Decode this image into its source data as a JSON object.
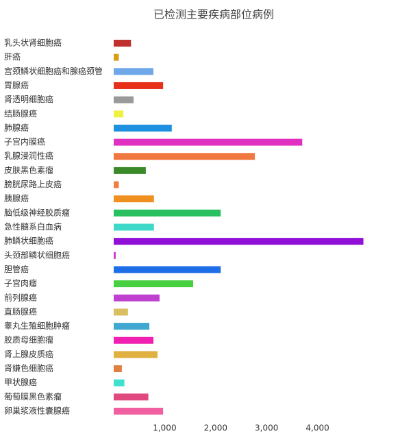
{
  "chart_data": {
    "type": "barh",
    "title": "已检测主要疾病部位病例",
    "categories": [
      "乳头状肾细胞癌",
      "肝癌",
      "宫颈鳞状细胞癌和腺癌颈管",
      "胃腺癌",
      "肾透明细胞癌",
      "结肠腺癌",
      "肺腺癌",
      "子宫内膜癌",
      "乳腺浸润性癌",
      "皮肤黑色素瘤",
      "膀胱尿路上皮癌",
      "胰腺癌",
      "脑低级神经胶质瘤",
      "急性髓系白血病",
      "肺鳞状细胞癌",
      "头颈部鳞状细胞癌",
      "胆管癌",
      "子宫肉瘤",
      "前列腺癌",
      "直肠腺癌",
      "睾丸生殖细胞肿瘤",
      "胶质母细胞瘤",
      "肾上腺皮质癌",
      "肾嫌色细胞癌",
      "甲状腺癌",
      "葡萄膜黑色素瘤",
      "卵巢浆液性囊腺癌"
    ],
    "values": [
      340,
      100,
      780,
      970,
      390,
      190,
      1140,
      3700,
      2770,
      630,
      100,
      790,
      2100,
      790,
      4900,
      40,
      2100,
      1560,
      900,
      280,
      700,
      780,
      860,
      160,
      210,
      680,
      970
    ],
    "colors": [
      "#c0302e",
      "#d4a017",
      "#6fa8e8",
      "#e8311a",
      "#9a9a9a",
      "#f0f040",
      "#1e90e0",
      "#e030c0",
      "#f07840",
      "#3a8a2a",
      "#f08040",
      "#f09020",
      "#28c060",
      "#40d8c8",
      "#9010d8",
      "#d040d0",
      "#1e6ee8",
      "#48d040",
      "#c040d0",
      "#d8c060",
      "#40a8d0",
      "#f020b0",
      "#e0b040",
      "#e08040",
      "#40e0d0",
      "#e04880",
      "#f060a0"
    ],
    "xlim": [
      0,
      5000
    ],
    "xticks": [
      {
        "value": 1000,
        "label": "1,000"
      },
      {
        "value": 2000,
        "label": "2,000"
      },
      {
        "value": 3000,
        "label": "3,000"
      },
      {
        "value": 4000,
        "label": "4,000"
      }
    ]
  }
}
